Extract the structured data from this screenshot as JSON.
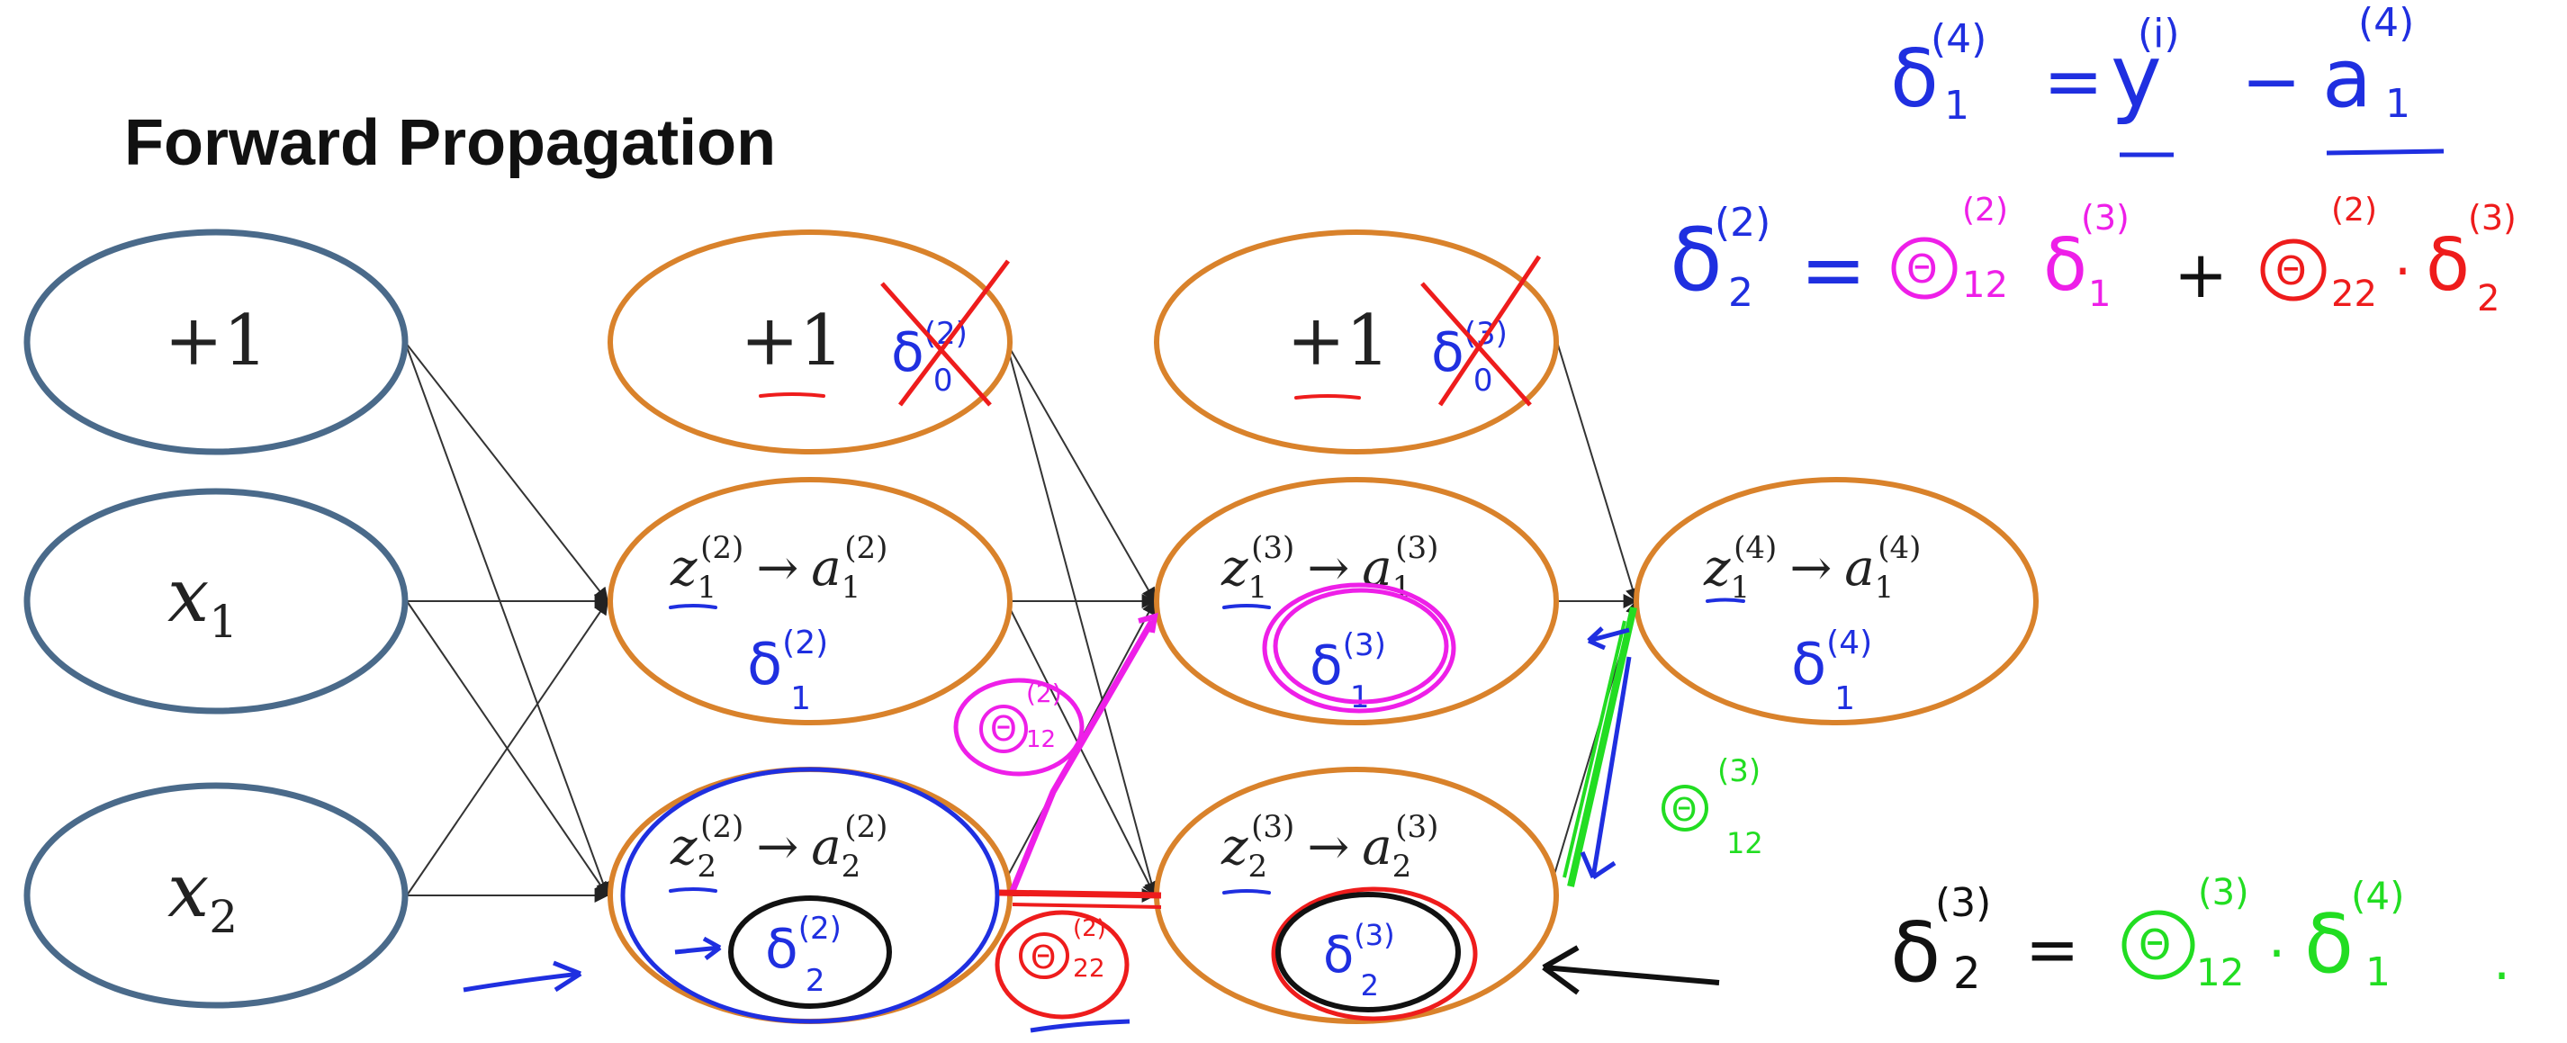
{
  "title": "Forward Propagation",
  "colors": {
    "input_stroke": "#4a6a8a",
    "hidden_stroke": "#d9822b",
    "blue_ink": "#1f2fe0",
    "magenta_ink": "#ee1fe8",
    "red_ink": "#ee1c1c",
    "green_ink": "#22dd22",
    "black_ink": "#111111"
  },
  "nodes": {
    "input_bias": "+1",
    "input_x1": "x",
    "input_x1_sub": "1",
    "input_x2": "x",
    "input_x2_sub": "2",
    "l2_bias": "+1",
    "l3_bias": "+1",
    "l2_u1": {
      "z": "z",
      "sub": "1",
      "sup": "(2)",
      "arrow": "→",
      "a": "a"
    },
    "l2_u2": {
      "z": "z",
      "sub": "2",
      "sup": "(2)",
      "arrow": "→",
      "a": "a"
    },
    "l3_u1": {
      "z": "z",
      "sub": "1",
      "sup": "(3)",
      "arrow": "→",
      "a": "a"
    },
    "l3_u2": {
      "z": "z",
      "sub": "2",
      "sup": "(3)",
      "arrow": "→",
      "a": "a"
    },
    "l4_u1": {
      "z": "z",
      "sub": "1",
      "sup": "(4)",
      "arrow": "→",
      "a": "a"
    }
  },
  "annotations": {
    "delta": "δ",
    "theta": "Θ",
    "l2_bias_delta_sup": "(2)",
    "l2_bias_delta_sub": "0",
    "l3_bias_delta_sup": "(3)",
    "l3_bias_delta_sub": "0",
    "l2_u1_delta": {
      "sup": "(2)",
      "sub": "1"
    },
    "l2_u2_delta": {
      "sup": "(2)",
      "sub": "2"
    },
    "l3_u1_delta": {
      "sup": "(3)",
      "sub": "1"
    },
    "l3_u2_delta": {
      "sup": "(3)",
      "sub": "2"
    },
    "l4_u1_delta": {
      "sup": "(4)",
      "sub": "1"
    },
    "theta_mag": {
      "sup": "(2)",
      "sub": "12"
    },
    "theta_red": {
      "sup": "(2)",
      "sub": "22"
    },
    "theta_green": {
      "sup": "(3)",
      "sub": "12"
    }
  },
  "equations": {
    "eq1": {
      "delta": "δ",
      "delta_sup": "(4)",
      "delta_sub": "1",
      "equals": "=",
      "y": "y",
      "y_sup": "(i)",
      "minus": "−",
      "a": "a",
      "a_sup": "(4)",
      "a_sub": "1"
    },
    "eq2": {
      "delta": "δ",
      "delta_sup": "(2)",
      "delta_sub": "2",
      "equals": "=",
      "t1_sup": "(2)",
      "t1_sub": "12",
      "d1_sup": "(3)",
      "d1_sub": "1",
      "plus": "+",
      "t2_sup": "(2)",
      "t2_sub": "22",
      "dot": "·",
      "d2_sup": "(3)",
      "d2_sub": "2"
    },
    "eq3": {
      "delta": "δ",
      "delta_sup": "(3)",
      "delta_sub": "2",
      "equals": "=",
      "t_sup": "(3)",
      "t_sub": "12",
      "dot": "·",
      "d_sup": "(4)",
      "d_sub": "1",
      "end": "."
    }
  }
}
